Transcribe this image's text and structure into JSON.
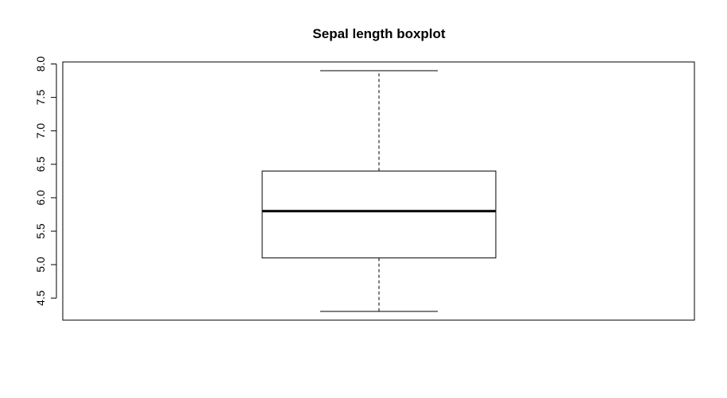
{
  "chart_data": {
    "type": "boxplot",
    "title": "Sepal length boxplot",
    "xlabel": "",
    "ylabel": "",
    "ylim": [
      4.17,
      8.03
    ],
    "yticks": [
      4.5,
      5.0,
      5.5,
      6.0,
      6.5,
      7.0,
      7.5,
      8.0
    ],
    "ytick_labels": [
      "4.5",
      "5.0",
      "5.5",
      "6.0",
      "6.5",
      "7.0",
      "7.5",
      "8.0"
    ],
    "box": {
      "min": 4.3,
      "q1": 5.1,
      "median": 5.8,
      "q3": 6.4,
      "max": 7.9
    },
    "grid": false,
    "colors": {
      "line": "#000000",
      "background": "#ffffff"
    }
  }
}
